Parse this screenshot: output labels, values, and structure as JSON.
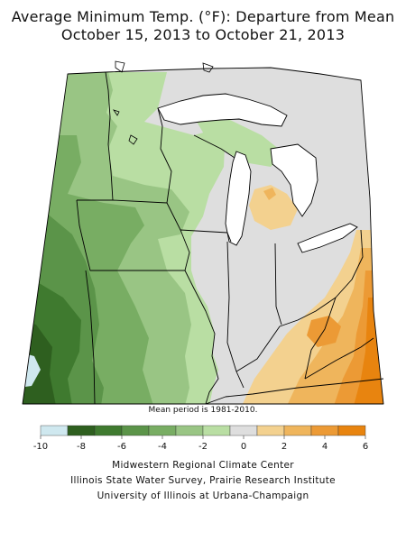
{
  "title_line1": "Average Minimum Temp. (°F): Departure from Mean",
  "title_line2": "October 15, 2013 to October 21, 2013",
  "mean_period": "Mean period is 1981-2010.",
  "legend": {
    "colors": [
      "#cfe8ef",
      "#2e5f1f",
      "#3f7a2f",
      "#5b9449",
      "#78ad63",
      "#99c584",
      "#b9dea3",
      "#dedede",
      "#f3d18f",
      "#efb55c",
      "#ec9a35",
      "#e8840f"
    ],
    "ticks": [
      "-10",
      "-8",
      "-6",
      "-4",
      "-2",
      "0",
      "2",
      "4",
      "6"
    ]
  },
  "credits": [
    "Midwestern Regional Climate Center",
    "Illinois State Water Survey, Prairie Research Institute",
    "University of Illinois at Urbana-Champaign"
  ]
}
